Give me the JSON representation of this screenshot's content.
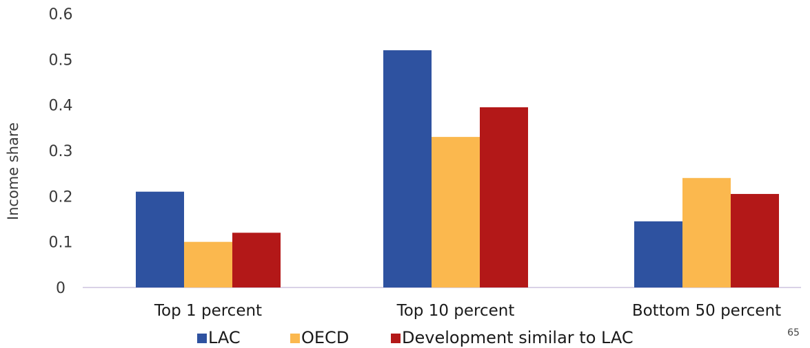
{
  "chart_data": {
    "type": "bar",
    "title": "",
    "xlabel": "",
    "ylabel": "Income share",
    "ylim": [
      0,
      0.6
    ],
    "yticks": [
      0,
      0.1,
      0.2,
      0.3,
      0.4,
      0.5,
      0.6
    ],
    "ytick_labels": [
      "0",
      "0.1",
      "0.2",
      "0.3",
      "0.4",
      "0.5",
      "0.6"
    ],
    "categories": [
      "Top 1 percent",
      "Top 10 percent",
      "Bottom 50 percent"
    ],
    "series": [
      {
        "name": "LAC",
        "color": "#2e52a0",
        "values": [
          0.21,
          0.52,
          0.145
        ]
      },
      {
        "name": "OECD",
        "color": "#fbb84e",
        "values": [
          0.1,
          0.33,
          0.24
        ]
      },
      {
        "name": "Development similar to LAC",
        "color": "#b31818",
        "values": [
          0.12,
          0.395,
          0.205
        ]
      }
    ],
    "grid": false,
    "legend_position": "bottom"
  },
  "page_number": "65"
}
